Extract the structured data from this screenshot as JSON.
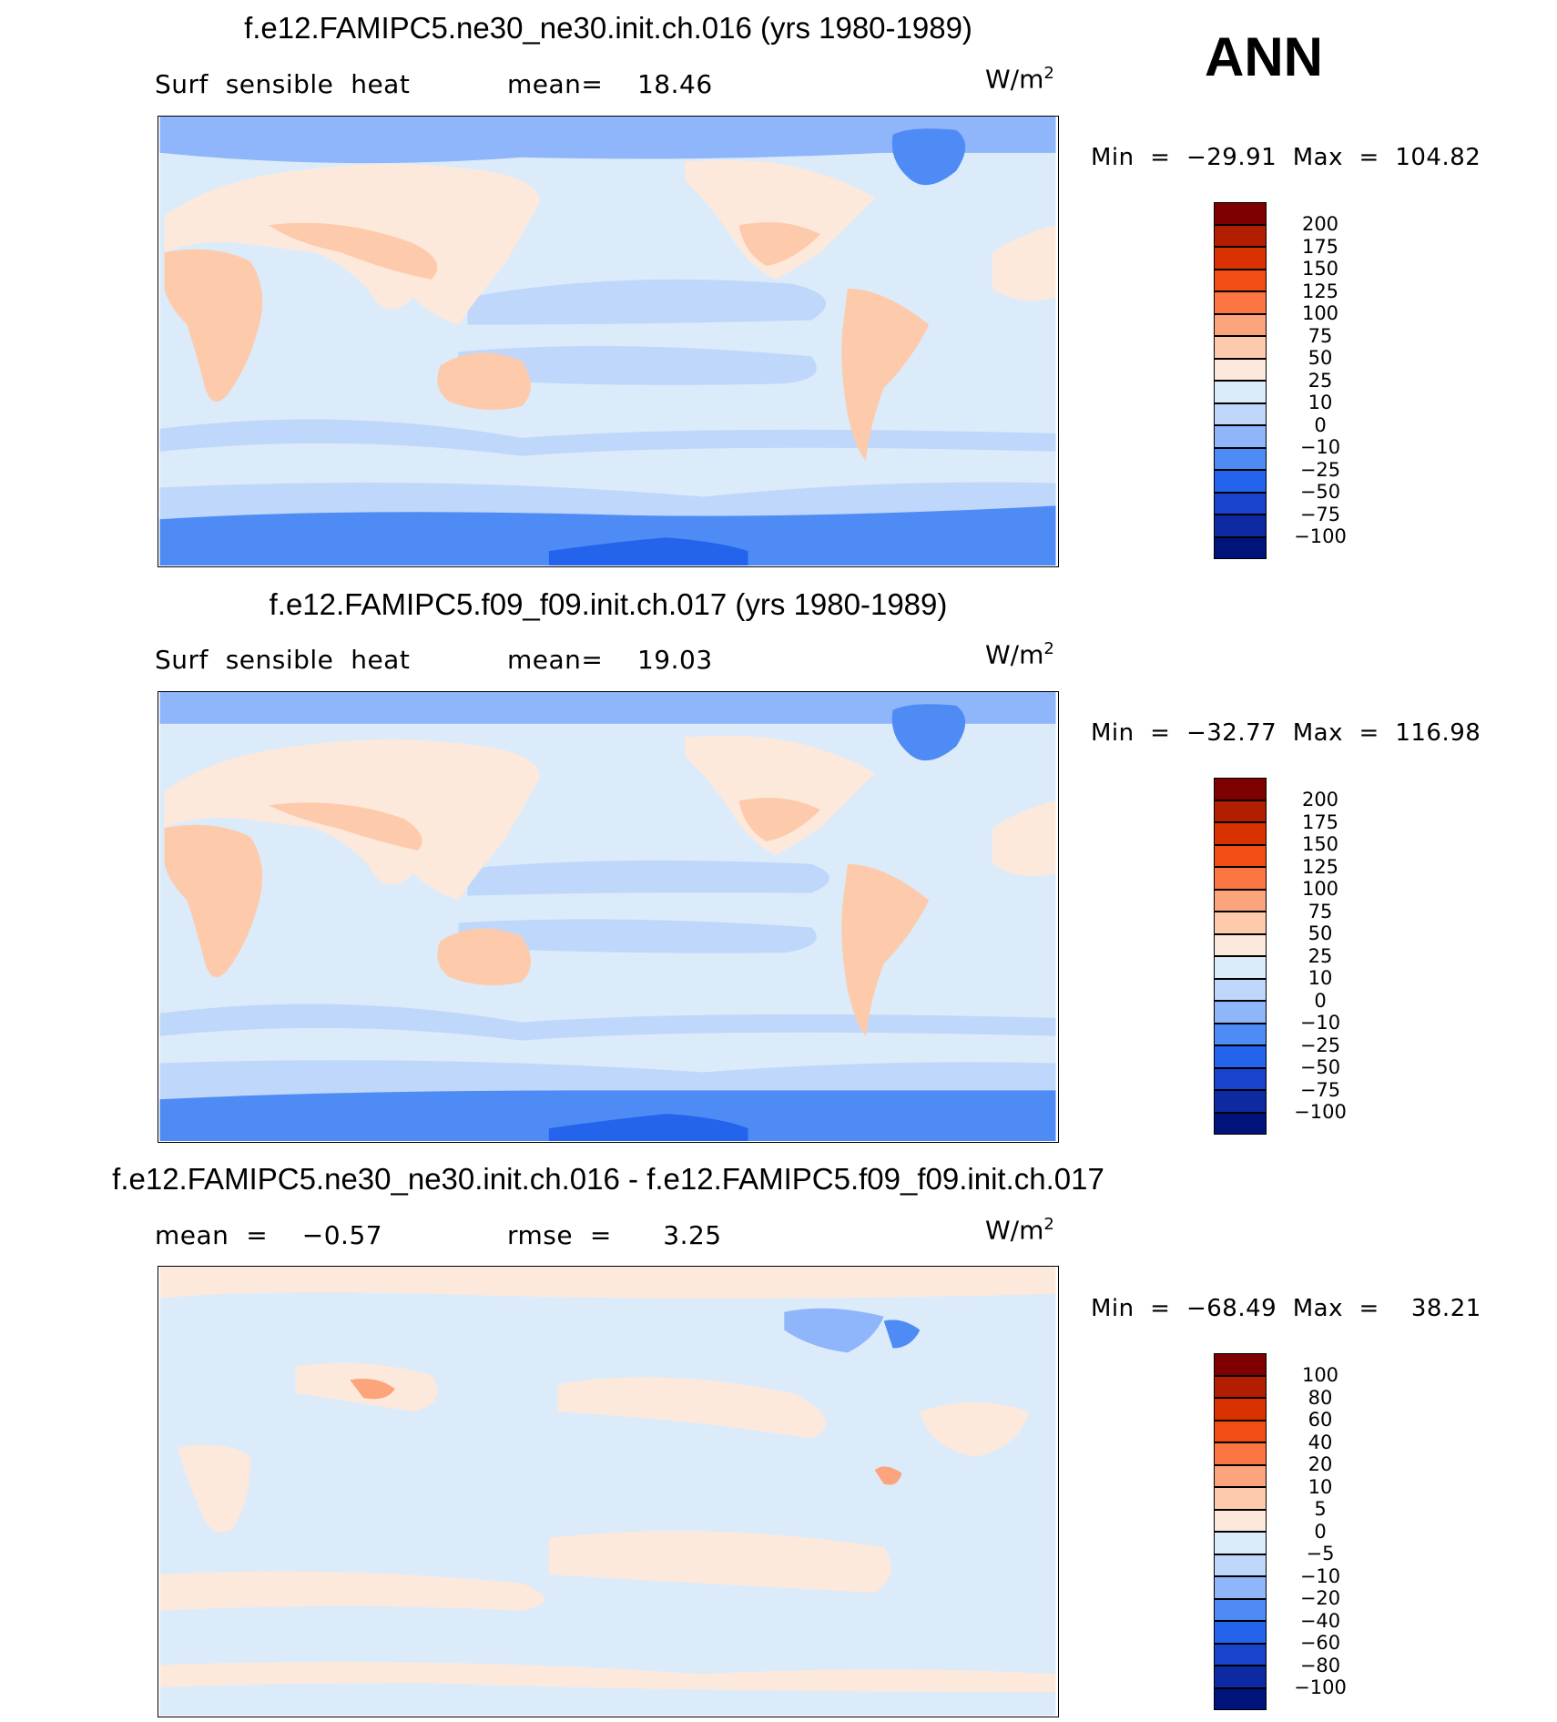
{
  "season": "ANN",
  "units": "W/m",
  "units_exp": "2",
  "panels": [
    {
      "title": "f.e12.FAMIPC5.ne30_ne30.init.ch.016 (yrs 1980-1989)",
      "sub_left": "Surf  sensible  heat",
      "sub_mid": "mean=    18.46",
      "minmax": "Min  =  −29.91  Max  =  104.82",
      "levels": [
        "200",
        "175",
        "150",
        "125",
        "100",
        "75",
        "50",
        "25",
        "10",
        "0",
        "−10",
        "−25",
        "−50",
        "−75",
        "−100"
      ],
      "colors": [
        "#7f0000",
        "#b31d00",
        "#d93200",
        "#f24d14",
        "#fb7643",
        "#fca47c",
        "#fdcbab",
        "#fde9db",
        "#dcebfa",
        "#bfd7fb",
        "#8fb5fa",
        "#4f8bf5",
        "#2463ec",
        "#1a43cc",
        "#0d2aa3",
        "#00137a"
      ]
    },
    {
      "title": "f.e12.FAMIPC5.f09_f09.init.ch.017 (yrs 1980-1989)",
      "sub_left": "Surf  sensible  heat",
      "sub_mid": "mean=    19.03",
      "minmax": "Min  =  −32.77  Max  =  116.98",
      "levels": [
        "200",
        "175",
        "150",
        "125",
        "100",
        "75",
        "50",
        "25",
        "10",
        "0",
        "−10",
        "−25",
        "−50",
        "−75",
        "−100"
      ],
      "colors": [
        "#7f0000",
        "#b31d00",
        "#d93200",
        "#f24d14",
        "#fb7643",
        "#fca47c",
        "#fdcbab",
        "#fde9db",
        "#dcebfa",
        "#bfd7fb",
        "#8fb5fa",
        "#4f8bf5",
        "#2463ec",
        "#1a43cc",
        "#0d2aa3",
        "#00137a"
      ]
    },
    {
      "title": "f.e12.FAMIPC5.ne30_ne30.init.ch.016 - f.e12.FAMIPC5.f09_f09.init.ch.017",
      "sub_left": "mean  =    −0.57",
      "sub_mid": "rmse  =      3.25",
      "minmax": "Min  =  −68.49  Max  =    38.21",
      "levels": [
        "100",
        "80",
        "60",
        "40",
        "20",
        "10",
        "5",
        "0",
        "−5",
        "−10",
        "−20",
        "−40",
        "−60",
        "−80",
        "−100"
      ],
      "colors": [
        "#7f0000",
        "#b31d00",
        "#d93200",
        "#f24d14",
        "#fb7643",
        "#fca47c",
        "#fdcbab",
        "#fde9db",
        "#dcebfa",
        "#bfd7fb",
        "#8fb5fa",
        "#4f8bf5",
        "#2463ec",
        "#1a43cc",
        "#0d2aa3",
        "#00137a"
      ]
    }
  ]
}
